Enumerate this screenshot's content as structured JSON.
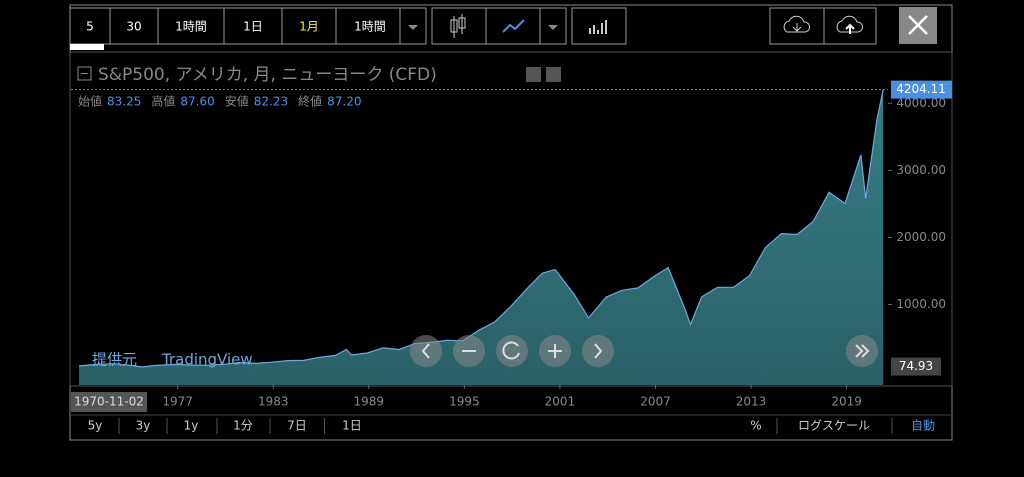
{
  "toolbar": {
    "buttons": [
      "5",
      "30",
      "1時間",
      "1日",
      "1月",
      "1時間"
    ],
    "active": 4
  },
  "chart_data": {
    "type": "area",
    "title": "S&P500, アメリカ, 月, ニューヨーク (CFD)",
    "ohlc": [
      {
        "label": "始値",
        "value": "83.25"
      },
      {
        "label": "高値",
        "value": "87.60"
      },
      {
        "label": "安値",
        "value": "82.23"
      },
      {
        "label": "終値",
        "value": "87.20"
      }
    ],
    "x": [
      1970.8,
      1971.5,
      1972.9,
      1973.9,
      1974.8,
      1975.5,
      1976.9,
      1977.9,
      1978.9,
      1979.9,
      1980.9,
      1981.9,
      1982.9,
      1983.9,
      1984.9,
      1985.9,
      1986.9,
      1987.6,
      1987.9,
      1988.9,
      1989.9,
      1990.9,
      1991.9,
      1992.9,
      1993.9,
      1994.9,
      1995.9,
      1996.9,
      1997.9,
      1998.9,
      1999.9,
      2000.7,
      2001.9,
      2002.8,
      2003.9,
      2004.9,
      2005.9,
      2006.9,
      2007.8,
      2008.9,
      2009.2,
      2009.9,
      2010.9,
      2011.9,
      2012.9,
      2013.9,
      2014.9,
      2015.9,
      2016.9,
      2017.9,
      2018.9,
      2019.9,
      2020.2,
      2020.9,
      2021.3
    ],
    "values": [
      84,
      100,
      118,
      97,
      68,
      90,
      107,
      95,
      96,
      108,
      136,
      122,
      140,
      164,
      167,
      211,
      242,
      330,
      247,
      277,
      353,
      330,
      417,
      435,
      466,
      459,
      615,
      740,
      970,
      1229,
      1469,
      1520,
      1148,
      800,
      1111,
      1212,
      1248,
      1418,
      1550,
      903,
      700,
      1115,
      1257,
      1257,
      1426,
      1848,
      2058,
      2044,
      2238,
      2673,
      2506,
      3230,
      2580,
      3756,
      4204
    ],
    "color": "#3d8a94",
    "line_color": "#6fa8dc",
    "xlim": [
      1970.3,
      2021.6
    ],
    "ylim": [
      -200,
      4750
    ],
    "xticks": [
      1977,
      1983,
      1989,
      1995,
      2001,
      2007,
      2013,
      2019
    ],
    "yticks": [
      {
        "value": 1000,
        "label": "1000.00"
      },
      {
        "value": 2000,
        "label": "2000.00"
      },
      {
        "value": 3000,
        "label": "3000.00"
      },
      {
        "value": 4000,
        "label": "4000.00"
      }
    ],
    "last_price": 4204.11,
    "low_price": 74.93,
    "date_label": "1970-11-02"
  },
  "watermark": {
    "prefix": "提供元",
    "brand": "TradingView"
  },
  "bottom_bar": {
    "ranges": [
      "5y",
      "3y",
      "1y",
      "1分",
      "7日",
      "1日"
    ],
    "options": [
      "%",
      "ログスケール",
      "自動"
    ]
  }
}
